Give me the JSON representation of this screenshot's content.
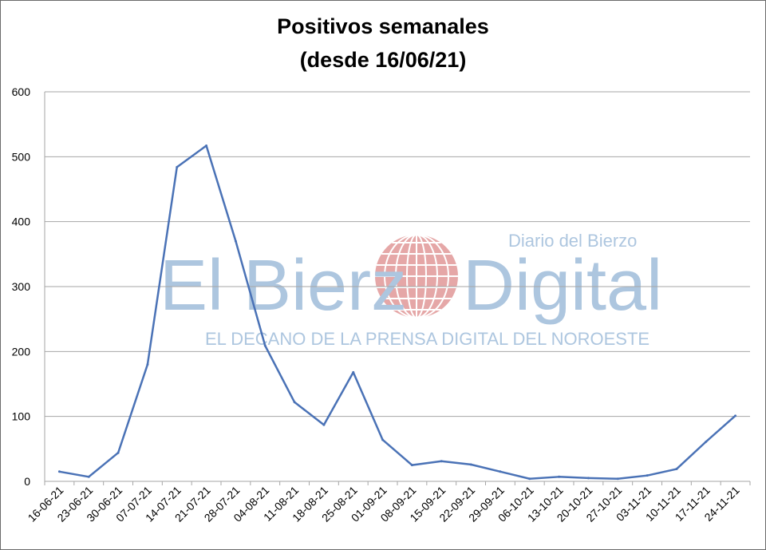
{
  "chart_data": {
    "type": "line",
    "title_line1": "Positivos semanales",
    "title_line2": "(desde 16/06/21)",
    "xlabel": "",
    "ylabel": "",
    "ylim": [
      0,
      600
    ],
    "yticks": [
      0,
      100,
      200,
      300,
      400,
      500,
      600
    ],
    "grid": true,
    "categories": [
      "16-06-21",
      "23-06-21",
      "30-06-21",
      "07-07-21",
      "14-07-21",
      "21-07-21",
      "28-07-21",
      "04-08-21",
      "11-08-21",
      "18-08-21",
      "25-08-21",
      "01-09-21",
      "08-09-21",
      "15-09-21",
      "22-09-21",
      "29-09-21",
      "06-10-21",
      "13-10-21",
      "20-10-21",
      "27-10-21",
      "03-11-21",
      "10-11-21",
      "17-11-21",
      "24-11-21"
    ],
    "series": [
      {
        "values": [
          15,
          7,
          44,
          180,
          484,
          517,
          370,
          209,
          122,
          87,
          168,
          64,
          25,
          31,
          26,
          15,
          4,
          7,
          5,
          4,
          9,
          19,
          61,
          101
        ]
      }
    ],
    "colors": {
      "line": "#4a72b6",
      "grid": "#a6a6a6"
    }
  },
  "watermark": {
    "brand_left": "El Bierz",
    "brand_right": "Digital",
    "small": "Diario del Bierzo",
    "tagline": "EL DECANO DE LA PRENSA DIGITAL DEL NOROESTE",
    "color": "#a9c3de",
    "globe_color": "#e4a3a3"
  }
}
